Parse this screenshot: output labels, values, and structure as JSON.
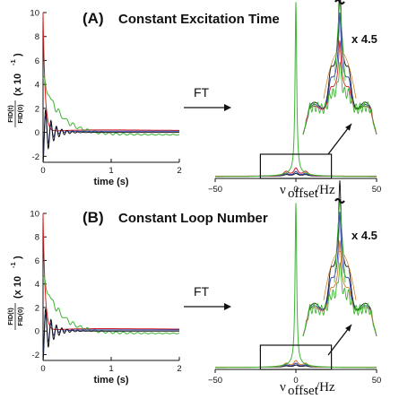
{
  "panels": [
    {
      "letter": "(A)",
      "title": "Constant Excitation Time",
      "ft_label": "FT",
      "scale_label": "x 4.5"
    },
    {
      "letter": "(B)",
      "title": "Constant Loop Number",
      "ft_label": "FT",
      "scale_label": "x 4.5"
    }
  ],
  "y_label": {
    "numerator": "FID(t)",
    "denominator": "FID(0)",
    "factor": "(x 10",
    "exponent": "-1",
    "close": ")"
  },
  "spectrum_xlabel": {
    "symbol": "ν",
    "subscript": "offset",
    "unit": "/Hz"
  },
  "colors": {
    "red": "#d62020",
    "green": "#3cb532",
    "blue": "#2a3fb0",
    "purple": "#7d2e8e",
    "black": "#111111",
    "orange": "#d07a2a"
  },
  "chart_data": [
    {
      "type": "line",
      "panel": "A-FID",
      "xlabel": "time (s)",
      "ylabel": "FID(t)/FID(0) (x 10-1)",
      "xlim": [
        0,
        2
      ],
      "ylim": [
        -2.5,
        10
      ],
      "x_ticks": [
        "0",
        "1",
        "2"
      ],
      "y_ticks": [
        "-2",
        "0",
        "2",
        "4",
        "6",
        "8",
        "10"
      ],
      "series": [
        {
          "color": "red",
          "y0": 10,
          "tau": 0.03,
          "plateau": 0.3
        },
        {
          "color": "green",
          "y0": 4.5,
          "tau": 0.25,
          "plateau": -0.2
        },
        {
          "color": "blue",
          "y0": -2,
          "tau": 0.1,
          "plateau": 0.1
        },
        {
          "color": "black",
          "y0": -2.6,
          "tau": 0.12,
          "plateau": 0
        }
      ]
    },
    {
      "type": "line",
      "panel": "A-spectrum",
      "xlabel": "νoffset/Hz",
      "xlim": [
        -50,
        50
      ],
      "x_ticks": [
        "−50",
        "0",
        "50"
      ],
      "series": [
        {
          "color": "green",
          "peak": 1.0
        },
        {
          "color": "red",
          "peak": 0.35
        },
        {
          "color": "blue",
          "peak": 0.2
        },
        {
          "color": "black",
          "peak": 0.12
        }
      ]
    },
    {
      "type": "line",
      "panel": "B-FID",
      "xlabel": "time (s)",
      "ylabel": "FID(t)/FID(0) (x 10-1)",
      "xlim": [
        0,
        2
      ],
      "ylim": [
        -2.5,
        10
      ],
      "x_ticks": [
        "0",
        "1",
        "2"
      ],
      "y_ticks": [
        "-2",
        "0",
        "2",
        "4",
        "6",
        "8",
        "10"
      ],
      "series": [
        {
          "color": "red",
          "y0": 10,
          "tau": 0.03,
          "plateau": 0.3
        },
        {
          "color": "green",
          "y0": 4.5,
          "tau": 0.25,
          "plateau": -0.2
        },
        {
          "color": "blue",
          "y0": -2,
          "tau": 0.1,
          "plateau": 0.1
        },
        {
          "color": "black",
          "y0": -2.6,
          "tau": 0.12,
          "plateau": 0
        }
      ]
    },
    {
      "type": "line",
      "panel": "B-spectrum",
      "xlabel": "νoffset/Hz",
      "xlim": [
        -50,
        50
      ],
      "x_ticks": [
        "−50",
        "0",
        "50"
      ],
      "series": [
        {
          "color": "green",
          "peak": 1.0
        },
        {
          "color": "orange",
          "peak": 0.3
        },
        {
          "color": "blue",
          "peak": 0.18
        },
        {
          "color": "black",
          "peak": 0.1
        }
      ]
    }
  ]
}
